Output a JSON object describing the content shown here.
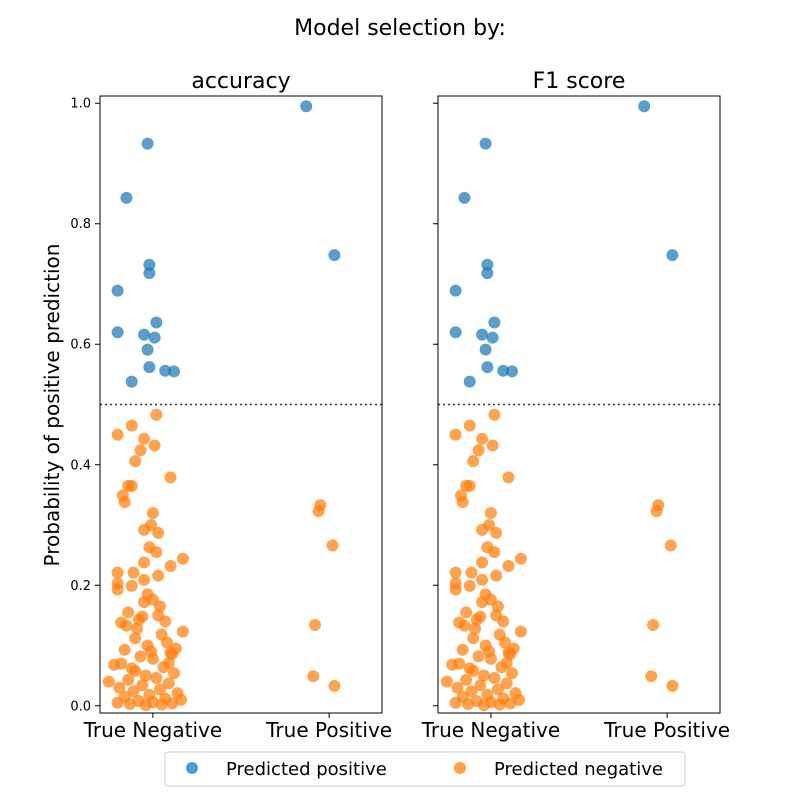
{
  "suptitle": "Model selection by:",
  "ylabel": "Probability of positive prediction",
  "legend": {
    "placement": "bottom-center",
    "items": [
      {
        "label": "Predicted positive",
        "color": "#1f77b4"
      },
      {
        "label": "Predicted negative",
        "color": "#ff7f0e"
      }
    ]
  },
  "threshold": 0.5,
  "chart_data": [
    {
      "type": "scatter",
      "title": "accuracy",
      "categories": [
        "True Negative",
        "True Positive"
      ],
      "ylim": [
        -0.012,
        1.012
      ],
      "yticks": [
        "0.0",
        "0.2",
        "0.4",
        "0.6",
        "0.8",
        "1.0"
      ],
      "grid": false,
      "series": [
        {
          "name": "Predicted positive",
          "color": "#1f77b4",
          "points": [
            [
              -0.03,
              0.933
            ],
            [
              -0.15,
              0.843
            ],
            [
              -0.02,
              0.732
            ],
            [
              -0.02,
              0.718
            ],
            [
              -0.2,
              0.689
            ],
            [
              0.02,
              0.636
            ],
            [
              -0.2,
              0.62
            ],
            [
              -0.05,
              0.616
            ],
            [
              0.01,
              0.611
            ],
            [
              -0.03,
              0.591
            ],
            [
              -0.02,
              0.562
            ],
            [
              0.07,
              0.556
            ],
            [
              0.12,
              0.555
            ],
            [
              -0.12,
              0.538
            ],
            [
              0.87,
              0.995
            ],
            [
              1.03,
              0.748
            ]
          ]
        },
        {
          "name": "Predicted negative",
          "color": "#ff7f0e",
          "points": [
            [
              0.02,
              0.483
            ],
            [
              -0.12,
              0.465
            ],
            [
              -0.2,
              0.45
            ],
            [
              -0.05,
              0.443
            ],
            [
              0.01,
              0.432
            ],
            [
              -0.07,
              0.424
            ],
            [
              -0.1,
              0.406
            ],
            [
              0.1,
              0.379
            ],
            [
              -0.14,
              0.365
            ],
            [
              -0.12,
              0.365
            ],
            [
              -0.17,
              0.349
            ],
            [
              -0.16,
              0.338
            ],
            [
              0.0,
              0.32
            ],
            [
              -0.01,
              0.3
            ],
            [
              -0.05,
              0.292
            ],
            [
              0.03,
              0.287
            ],
            [
              -0.02,
              0.263
            ],
            [
              0.02,
              0.255
            ],
            [
              0.17,
              0.244
            ],
            [
              -0.05,
              0.238
            ],
            [
              0.1,
              0.232
            ],
            [
              -0.2,
              0.221
            ],
            [
              -0.11,
              0.221
            ],
            [
              0.03,
              0.216
            ],
            [
              -0.05,
              0.209
            ],
            [
              -0.2,
              0.203
            ],
            [
              -0.12,
              0.199
            ],
            [
              -0.2,
              0.193
            ],
            [
              -0.03,
              0.185
            ],
            [
              0.0,
              0.176
            ],
            [
              -0.05,
              0.172
            ],
            [
              0.04,
              0.165
            ],
            [
              -0.14,
              0.155
            ],
            [
              0.03,
              0.15
            ],
            [
              -0.08,
              0.143
            ],
            [
              -0.18,
              0.138
            ],
            [
              -0.15,
              0.133
            ],
            [
              0.17,
              0.123
            ],
            [
              0.05,
              0.118
            ],
            [
              -0.1,
              0.112
            ],
            [
              0.08,
              0.105
            ],
            [
              -0.03,
              0.1
            ],
            [
              -0.16,
              0.093
            ],
            [
              0.1,
              0.088
            ],
            [
              -0.07,
              0.082
            ],
            [
              0.0,
              0.078
            ],
            [
              -0.18,
              0.07
            ],
            [
              -0.22,
              0.068
            ],
            [
              0.06,
              0.064
            ],
            [
              -0.1,
              0.058
            ],
            [
              0.12,
              0.054
            ],
            [
              -0.04,
              0.05
            ],
            [
              0.02,
              0.046
            ],
            [
              -0.14,
              0.043
            ],
            [
              -0.25,
              0.04
            ],
            [
              0.09,
              0.037
            ],
            [
              -0.06,
              0.034
            ],
            [
              -0.19,
              0.03
            ],
            [
              0.04,
              0.027
            ],
            [
              -0.11,
              0.024
            ],
            [
              0.14,
              0.021
            ],
            [
              -0.02,
              0.018
            ],
            [
              -0.16,
              0.015
            ],
            [
              0.07,
              0.012
            ],
            [
              0.16,
              0.01
            ],
            [
              -0.08,
              0.008
            ],
            [
              0.0,
              0.006
            ],
            [
              -0.2,
              0.005
            ],
            [
              0.11,
              0.004
            ],
            [
              -0.13,
              0.003
            ],
            [
              0.05,
              0.002
            ],
            [
              -0.04,
              0.001
            ],
            [
              -0.12,
              0.062
            ],
            [
              0.09,
              0.071
            ],
            [
              -0.01,
              0.09
            ],
            [
              0.13,
              0.095
            ],
            [
              -0.09,
              0.128
            ],
            [
              0.07,
              0.14
            ],
            [
              -0.06,
              0.148
            ],
            [
              0.11,
              0.086
            ],
            [
              0.95,
              0.333
            ],
            [
              0.94,
              0.323
            ],
            [
              1.02,
              0.266
            ],
            [
              0.92,
              0.134
            ],
            [
              0.91,
              0.049
            ],
            [
              1.03,
              0.033
            ]
          ]
        }
      ]
    },
    {
      "type": "scatter",
      "title": "F1 score",
      "categories": [
        "True Negative",
        "True Positive"
      ],
      "ylim": [
        -0.012,
        1.012
      ],
      "yticks": [
        "0.0",
        "0.2",
        "0.4",
        "0.6",
        "0.8",
        "1.0"
      ],
      "grid": false,
      "series": [
        {
          "name": "Predicted positive",
          "color": "#1f77b4",
          "points": [
            [
              -0.03,
              0.933
            ],
            [
              -0.15,
              0.843
            ],
            [
              -0.02,
              0.732
            ],
            [
              -0.02,
              0.718
            ],
            [
              -0.2,
              0.689
            ],
            [
              0.02,
              0.636
            ],
            [
              -0.2,
              0.62
            ],
            [
              -0.05,
              0.616
            ],
            [
              0.01,
              0.611
            ],
            [
              -0.03,
              0.591
            ],
            [
              -0.02,
              0.562
            ],
            [
              0.07,
              0.556
            ],
            [
              0.12,
              0.555
            ],
            [
              -0.12,
              0.538
            ],
            [
              0.87,
              0.995
            ],
            [
              1.03,
              0.748
            ]
          ]
        },
        {
          "name": "Predicted negative",
          "color": "#ff7f0e",
          "points": [
            [
              0.02,
              0.483
            ],
            [
              -0.12,
              0.465
            ],
            [
              -0.2,
              0.45
            ],
            [
              -0.05,
              0.443
            ],
            [
              0.01,
              0.432
            ],
            [
              -0.07,
              0.424
            ],
            [
              -0.1,
              0.406
            ],
            [
              0.1,
              0.379
            ],
            [
              -0.14,
              0.365
            ],
            [
              -0.12,
              0.365
            ],
            [
              -0.17,
              0.349
            ],
            [
              -0.16,
              0.338
            ],
            [
              0.0,
              0.32
            ],
            [
              -0.01,
              0.3
            ],
            [
              -0.05,
              0.292
            ],
            [
              0.03,
              0.287
            ],
            [
              -0.02,
              0.263
            ],
            [
              0.02,
              0.255
            ],
            [
              0.17,
              0.244
            ],
            [
              -0.05,
              0.238
            ],
            [
              0.1,
              0.232
            ],
            [
              -0.2,
              0.221
            ],
            [
              -0.11,
              0.221
            ],
            [
              0.03,
              0.216
            ],
            [
              -0.05,
              0.209
            ],
            [
              -0.2,
              0.203
            ],
            [
              -0.12,
              0.199
            ],
            [
              -0.2,
              0.193
            ],
            [
              -0.03,
              0.185
            ],
            [
              0.0,
              0.176
            ],
            [
              -0.05,
              0.172
            ],
            [
              0.04,
              0.165
            ],
            [
              -0.14,
              0.155
            ],
            [
              0.03,
              0.15
            ],
            [
              -0.08,
              0.143
            ],
            [
              -0.18,
              0.138
            ],
            [
              -0.15,
              0.133
            ],
            [
              0.17,
              0.123
            ],
            [
              0.05,
              0.118
            ],
            [
              -0.1,
              0.112
            ],
            [
              0.08,
              0.105
            ],
            [
              -0.03,
              0.1
            ],
            [
              -0.16,
              0.093
            ],
            [
              0.1,
              0.088
            ],
            [
              -0.07,
              0.082
            ],
            [
              0.0,
              0.078
            ],
            [
              -0.18,
              0.07
            ],
            [
              -0.22,
              0.068
            ],
            [
              0.06,
              0.064
            ],
            [
              -0.1,
              0.058
            ],
            [
              0.12,
              0.054
            ],
            [
              -0.04,
              0.05
            ],
            [
              0.02,
              0.046
            ],
            [
              -0.14,
              0.043
            ],
            [
              -0.25,
              0.04
            ],
            [
              0.09,
              0.037
            ],
            [
              -0.06,
              0.034
            ],
            [
              -0.19,
              0.03
            ],
            [
              0.04,
              0.027
            ],
            [
              -0.11,
              0.024
            ],
            [
              0.14,
              0.021
            ],
            [
              -0.02,
              0.018
            ],
            [
              -0.16,
              0.015
            ],
            [
              0.07,
              0.012
            ],
            [
              0.16,
              0.01
            ],
            [
              -0.08,
              0.008
            ],
            [
              0.0,
              0.006
            ],
            [
              -0.2,
              0.005
            ],
            [
              0.11,
              0.004
            ],
            [
              -0.13,
              0.003
            ],
            [
              0.05,
              0.002
            ],
            [
              -0.04,
              0.001
            ],
            [
              -0.12,
              0.062
            ],
            [
              0.09,
              0.071
            ],
            [
              -0.01,
              0.09
            ],
            [
              0.13,
              0.095
            ],
            [
              -0.09,
              0.128
            ],
            [
              0.07,
              0.14
            ],
            [
              -0.06,
              0.148
            ],
            [
              0.11,
              0.086
            ],
            [
              0.95,
              0.333
            ],
            [
              0.94,
              0.323
            ],
            [
              1.02,
              0.266
            ],
            [
              0.92,
              0.134
            ],
            [
              0.91,
              0.049
            ],
            [
              1.03,
              0.033
            ]
          ]
        }
      ]
    }
  ]
}
